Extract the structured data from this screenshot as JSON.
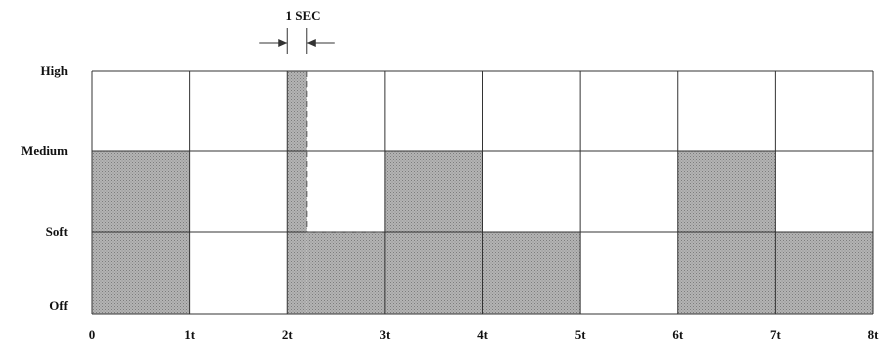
{
  "chart_data": {
    "type": "step",
    "levels": [
      "Off",
      "Soft",
      "Medium",
      "High"
    ],
    "x_labels": [
      "0",
      "1t",
      "2t",
      "3t",
      "4t",
      "5t",
      "6t",
      "7t",
      "8t"
    ],
    "segments": [
      {
        "start": 0,
        "end": 1,
        "level": "Medium"
      },
      {
        "start": 1,
        "end": 2,
        "level": "Off"
      },
      {
        "start": 2,
        "end": 2.2,
        "level": "High"
      },
      {
        "start": 2.2,
        "end": 3,
        "level": "Soft"
      },
      {
        "start": 3,
        "end": 4,
        "level": "Medium"
      },
      {
        "start": 4,
        "end": 5,
        "level": "Soft"
      },
      {
        "start": 5,
        "end": 6,
        "level": "Off"
      },
      {
        "start": 6,
        "end": 7,
        "level": "Medium"
      },
      {
        "start": 7,
        "end": 8,
        "level": "Soft"
      }
    ],
    "dashed_outline": {
      "start": 2.2,
      "end": 3,
      "level": "Medium"
    },
    "annotation": {
      "text": "1 SEC",
      "start": 2,
      "end": 2.2
    },
    "fill_color": "#a9a9a9"
  }
}
